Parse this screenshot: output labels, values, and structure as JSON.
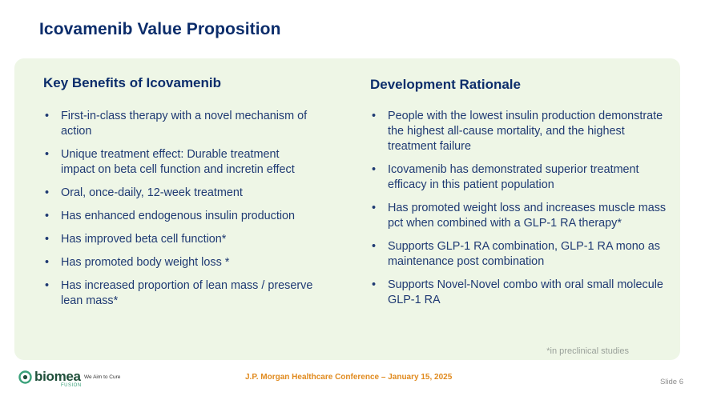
{
  "title": "Icovamenib Value Proposition",
  "left": {
    "heading": "Key Benefits of Icovamenib",
    "items": [
      "First-in-class therapy with a novel mechanism of action",
      "Unique treatment effect: Durable treatment impact on beta cell function and incretin effect",
      "Oral, once-daily, 12-week treatment",
      "Has enhanced endogenous insulin production",
      "Has improved beta cell function*",
      "Has promoted body weight loss *",
      "Has increased proportion of lean mass / preserve lean mass*"
    ]
  },
  "right": {
    "heading": "Development Rationale",
    "items": [
      "People with the lowest insulin production demonstrate the highest all-cause mortality, and the highest treatment failure",
      "Icovamenib has demonstrated superior treatment efficacy in this patient population",
      "Has promoted  weight loss and increases muscle mass pct when combined with a GLP-1 RA therapy*",
      "Supports GLP-1 RA combination, GLP-1 RA mono as maintenance post combination",
      "Supports Novel-Novel combo with oral small molecule GLP-1 RA"
    ]
  },
  "footnote": "*in preclinical studies",
  "logo": {
    "name": "biomea",
    "sub": "FUSION",
    "tagline": "We Aim to Cure",
    "icon": "biomea-logo-icon"
  },
  "conference": "J.P. Morgan Healthcare Conference – January 15, 2025",
  "slide_number": "Slide 6",
  "colors": {
    "title": "#0c2d6b",
    "body": "#1f3a73",
    "panel": "#eef6e6",
    "accent": "#e08a1e"
  }
}
